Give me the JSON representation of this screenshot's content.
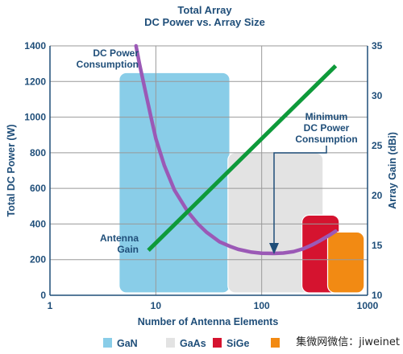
{
  "chart_data": {
    "type": "line",
    "title": [
      "Total Array",
      "DC Power vs. Array Size"
    ],
    "xlabel": "Number of Antenna Elements",
    "ylabel_left": "Total DC Power (W)",
    "ylabel_right": "Array Gain (dBi)",
    "x_scale": "log",
    "xlim": [
      1,
      1000
    ],
    "ylim_left": [
      0,
      1400
    ],
    "ylim_right": [
      10,
      35
    ],
    "x_ticks": [
      1,
      10,
      100,
      1000
    ],
    "x_tick_labels": [
      "1",
      "10",
      "100",
      "1000"
    ],
    "y_left_ticks": [
      0,
      200,
      400,
      600,
      800,
      1000,
      1200,
      1400
    ],
    "y_left_tick_labels": [
      "0",
      "200",
      "400",
      "600",
      "800",
      "1000",
      "1200",
      "1400"
    ],
    "y_right_ticks": [
      10,
      15,
      20,
      25,
      30,
      35
    ],
    "y_right_tick_labels": [
      "10",
      "15",
      "20",
      "25",
      "30",
      "35"
    ],
    "grid": true,
    "regions": [
      {
        "name": "GaN",
        "x_range": [
          4.5,
          50
        ],
        "y_top": 1250,
        "color": "#89cde8"
      },
      {
        "name": "GaAs",
        "x_range": [
          48,
          380
        ],
        "y_top": 800,
        "color": "#e3e3e3"
      },
      {
        "name": "SiGe",
        "x_range": [
          240,
          540
        ],
        "y_top": 450,
        "color": "#d5132f"
      },
      {
        "name": "",
        "x_range": [
          420,
          930
        ],
        "y_top": 355,
        "color": "#f28a13"
      }
    ],
    "series": [
      {
        "name": "DC Power Consumption",
        "axis": "left",
        "color": "#9b59b6",
        "x": [
          6.5,
          7,
          8,
          9,
          10,
          12,
          15,
          20,
          25,
          30,
          40,
          50,
          60,
          80,
          100,
          130,
          160,
          200,
          250,
          300,
          350,
          400,
          450,
          500
        ],
        "y": [
          1400,
          1300,
          1140,
          1000,
          880,
          730,
          590,
          470,
          400,
          355,
          300,
          275,
          258,
          242,
          236,
          235,
          237,
          245,
          262,
          283,
          304,
          324,
          342,
          360
        ]
      },
      {
        "name": "Antenna Gain",
        "axis": "right",
        "color": "#0e9a3a",
        "x": [
          8.5,
          500
        ],
        "y": [
          14.5,
          33
        ]
      }
    ],
    "annotations": [
      {
        "text": [
          "DC Power",
          "Consumption"
        ]
      },
      {
        "text": [
          "Minimum",
          "DC Power",
          "Consumption"
        ]
      },
      {
        "text": [
          "Antenna",
          "Gain"
        ]
      }
    ],
    "legend": [
      {
        "label": "GaN",
        "color": "#89cde8"
      },
      {
        "label": "GaAs",
        "color": "#e3e3e3"
      },
      {
        "label": "SiGe",
        "color": "#d5132f"
      },
      {
        "label": "",
        "color": "#f28a13"
      }
    ]
  },
  "watermark": "集微网微信：jiweinet",
  "colors": {
    "text": "#1f4e79",
    "grid": "#999999",
    "axis": "#1f4e79",
    "annotation_line": "#1f4e79"
  }
}
